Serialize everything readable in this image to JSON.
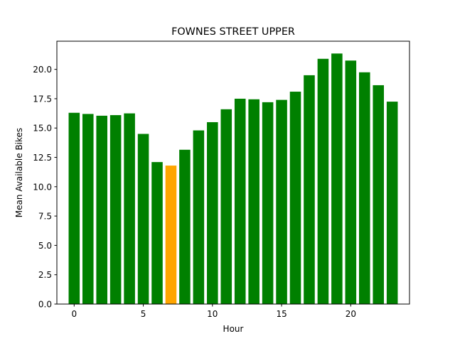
{
  "chart_data": {
    "type": "bar",
    "title": "FOWNES STREET UPPER",
    "xlabel": "Hour",
    "ylabel": "Mean Available Bikes",
    "x": [
      0,
      1,
      2,
      3,
      4,
      5,
      6,
      7,
      8,
      9,
      10,
      11,
      12,
      13,
      14,
      15,
      16,
      17,
      18,
      19,
      20,
      21,
      22,
      23
    ],
    "values": [
      16.3,
      16.2,
      16.05,
      16.1,
      16.25,
      14.5,
      12.1,
      11.8,
      13.15,
      14.8,
      15.5,
      16.6,
      17.5,
      17.45,
      17.2,
      17.4,
      18.1,
      19.5,
      20.9,
      21.35,
      20.75,
      19.75,
      18.65,
      17.25
    ],
    "highlight_index": 7,
    "colors": {
      "default": "#008000",
      "highlight": "#ffa500"
    },
    "xlim": [
      -1.25,
      24.25
    ],
    "ylim": [
      0,
      22.4
    ],
    "xticks": [
      0,
      5,
      10,
      15,
      20
    ],
    "xtick_labels": [
      "0",
      "5",
      "10",
      "15",
      "20"
    ],
    "yticks": [
      0,
      2.5,
      5,
      7.5,
      10,
      12.5,
      15,
      17.5,
      20
    ],
    "ytick_labels": [
      "0.0",
      "2.5",
      "5.0",
      "7.5",
      "10.0",
      "12.5",
      "15.0",
      "17.5",
      "20.0"
    ],
    "grid": false,
    "legend": "none"
  }
}
